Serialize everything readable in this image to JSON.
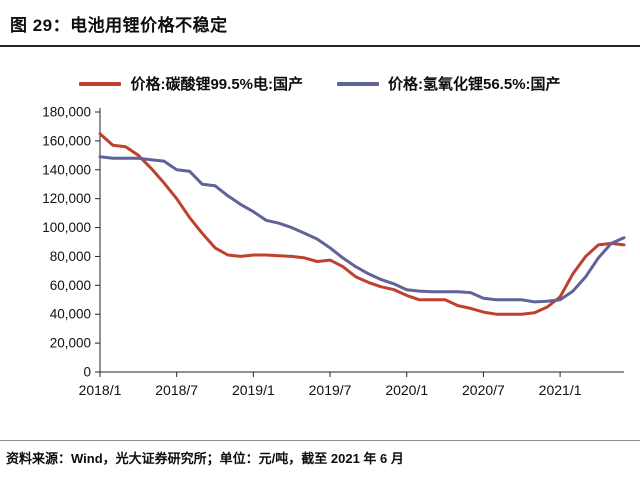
{
  "header": {
    "title": "图 29：电池用锂价格不稳定"
  },
  "legend": [
    {
      "label": "价格:碳酸锂99.5%电:国产",
      "color": "#C0402E"
    },
    {
      "label": "价格:氢氧化锂56.5%:国产",
      "color": "#5F6398"
    }
  ],
  "footer": {
    "source": "资料来源：Wind，光大证券研究所；单位：元/吨，截至 2021 年 6 月"
  },
  "chart_data": {
    "type": "line",
    "title": "图 29：电池用锂价格不稳定",
    "xlabel": "",
    "ylabel": "元/吨",
    "ylim": [
      0,
      180000
    ],
    "ytick_interval": 20000,
    "ytick_labels": [
      "0",
      "20,000",
      "40,000",
      "60,000",
      "80,000",
      "100,000",
      "120,000",
      "140,000",
      "160,000",
      "180,000"
    ],
    "xtick_labels": [
      "2018/1",
      "2018/7",
      "2019/1",
      "2019/7",
      "2020/1",
      "2020/7",
      "2021/1"
    ],
    "xtick_indices": [
      0,
      6,
      12,
      18,
      24,
      30,
      36
    ],
    "grid": false,
    "legend_position": "top",
    "x": [
      "2018/1",
      "2018/2",
      "2018/3",
      "2018/4",
      "2018/5",
      "2018/6",
      "2018/7",
      "2018/8",
      "2018/9",
      "2018/10",
      "2018/11",
      "2018/12",
      "2019/1",
      "2019/2",
      "2019/3",
      "2019/4",
      "2019/5",
      "2019/6",
      "2019/7",
      "2019/8",
      "2019/9",
      "2019/10",
      "2019/11",
      "2019/12",
      "2020/1",
      "2020/2",
      "2020/3",
      "2020/4",
      "2020/5",
      "2020/6",
      "2020/7",
      "2020/8",
      "2020/9",
      "2020/10",
      "2020/11",
      "2020/12",
      "2021/1",
      "2021/2",
      "2021/3",
      "2021/4",
      "2021/5",
      "2021/6"
    ],
    "series": [
      {
        "id": "carbonate",
        "name": "价格:碳酸锂99.5%电:国产",
        "color": "#C0402E",
        "values": [
          165000,
          157000,
          156000,
          150000,
          141000,
          131000,
          120000,
          107000,
          96000,
          86000,
          81000,
          80000,
          81000,
          81000,
          80500,
          80000,
          79000,
          76500,
          77500,
          73000,
          66000,
          62000,
          59000,
          57000,
          53000,
          50000,
          50000,
          50000,
          46000,
          44000,
          41500,
          40000,
          40000,
          40000,
          41000,
          45000,
          52000,
          68000,
          80000,
          88000,
          89000,
          88000
        ]
      },
      {
        "id": "hydroxide",
        "name": "价格:氢氧化锂56.5%:国产",
        "color": "#5F6398",
        "values": [
          149000,
          148000,
          148000,
          148000,
          147000,
          146000,
          140000,
          139000,
          130000,
          129000,
          122000,
          116000,
          111000,
          105000,
          103000,
          100000,
          96000,
          92000,
          86000,
          79000,
          73000,
          68000,
          64000,
          61000,
          57000,
          56000,
          55500,
          55500,
          55500,
          55000,
          51000,
          50000,
          50000,
          50000,
          48500,
          49000,
          50000,
          56000,
          66000,
          79000,
          89000,
          93000
        ]
      }
    ]
  }
}
